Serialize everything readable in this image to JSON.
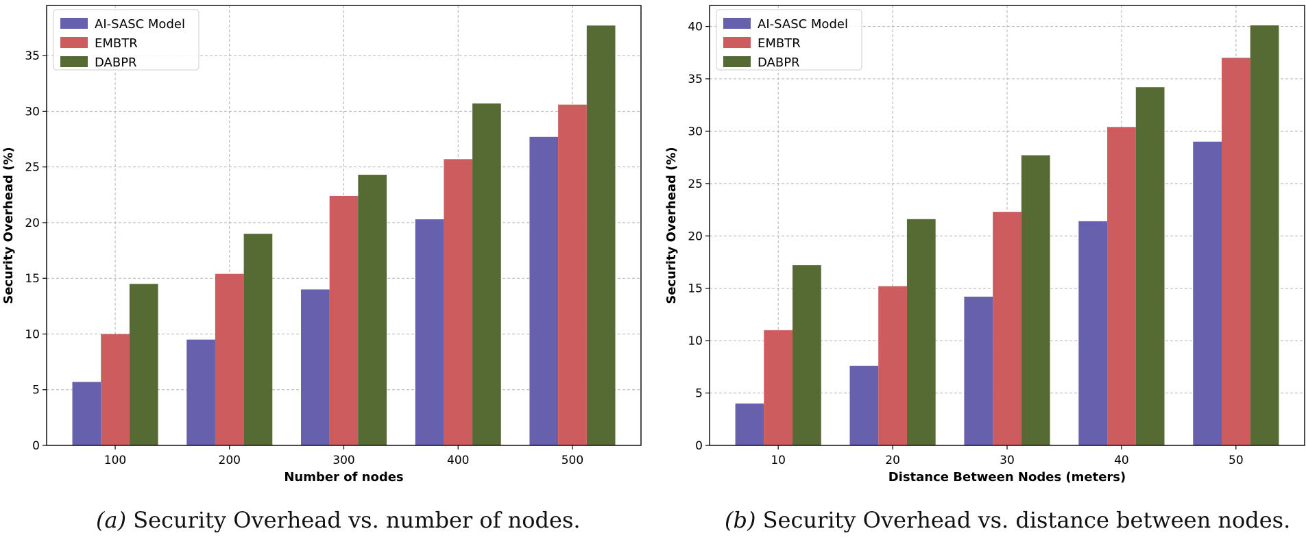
{
  "chart_data": [
    {
      "type": "bar",
      "xlabel": "Number of nodes",
      "ylabel": "Security Overhead (%)",
      "categories": [
        "100",
        "200",
        "300",
        "400",
        "500"
      ],
      "ylim": [
        0,
        39.5
      ],
      "yticks": [
        0,
        5,
        10,
        15,
        20,
        25,
        30,
        35
      ],
      "grid": true,
      "legend_position": "top-left",
      "series": [
        {
          "name": "AI-SASC Model",
          "color": "#6760ad",
          "values": [
            5.7,
            9.5,
            14.0,
            20.3,
            27.7
          ]
        },
        {
          "name": "EMBTR",
          "color": "#cd5c5f",
          "values": [
            10.0,
            15.4,
            22.4,
            25.7,
            30.6
          ]
        },
        {
          "name": "DABPR",
          "color": "#556b33",
          "values": [
            14.5,
            19.0,
            24.3,
            30.7,
            37.7
          ]
        }
      ],
      "caption": {
        "label": "(a)",
        "text": "Security Overhead vs. number of nodes."
      }
    },
    {
      "type": "bar",
      "xlabel": "Distance Between Nodes (meters)",
      "ylabel": "Security Overhead (%)",
      "categories": [
        "10",
        "20",
        "30",
        "40",
        "50"
      ],
      "ylim": [
        0,
        42
      ],
      "yticks": [
        0,
        5,
        10,
        15,
        20,
        25,
        30,
        35,
        40
      ],
      "grid": true,
      "legend_position": "top-left",
      "series": [
        {
          "name": "AI-SASC Model",
          "color": "#6760ad",
          "values": [
            4.0,
            7.6,
            14.2,
            21.4,
            29.0
          ]
        },
        {
          "name": "EMBTR",
          "color": "#cd5c5f",
          "values": [
            11.0,
            15.2,
            22.3,
            30.4,
            37.0
          ]
        },
        {
          "name": "DABPR",
          "color": "#556b33",
          "values": [
            17.2,
            21.6,
            27.7,
            34.2,
            40.1
          ]
        }
      ],
      "caption": {
        "label": "(b)",
        "text": "Security Overhead vs. distance between nodes."
      }
    }
  ]
}
